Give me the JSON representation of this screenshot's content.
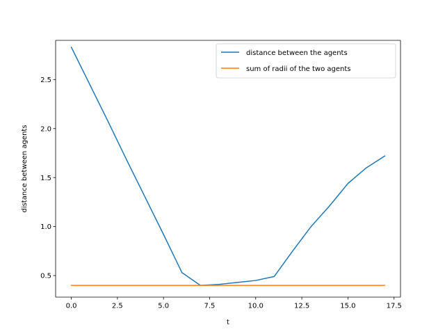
{
  "chart_data": {
    "type": "line",
    "title": "",
    "xlabel": "t",
    "ylabel": "distance between agents",
    "xlim": [
      -0.85,
      17.85
    ],
    "ylim": [
      0.28,
      2.9
    ],
    "xticks": [
      0.0,
      2.5,
      5.0,
      7.5,
      10.0,
      12.5,
      15.0,
      17.5
    ],
    "xtick_labels": [
      "0.0",
      "2.5",
      "5.0",
      "7.5",
      "10.0",
      "12.5",
      "15.0",
      "17.5"
    ],
    "yticks": [
      0.5,
      1.0,
      1.5,
      2.0,
      2.5
    ],
    "ytick_labels": [
      "0.5",
      "1.0",
      "1.5",
      "2.0",
      "2.5"
    ],
    "grid": false,
    "legend_position": "upper right",
    "series": [
      {
        "name": "distance between the agents",
        "color": "#1f77b4",
        "x": [
          0,
          1,
          2,
          3,
          4,
          5,
          6,
          7,
          8,
          9,
          10,
          11,
          12,
          13,
          14,
          15,
          16,
          17
        ],
        "y": [
          2.83,
          2.45,
          2.07,
          1.68,
          1.3,
          0.92,
          0.53,
          0.4,
          0.41,
          0.43,
          0.45,
          0.49,
          0.75,
          1.0,
          1.21,
          1.44,
          1.6,
          1.72
        ]
      },
      {
        "name": "sum of radii of the two agents",
        "color": "#ff7f0e",
        "x": [
          0,
          17
        ],
        "y": [
          0.4,
          0.4
        ]
      }
    ]
  }
}
